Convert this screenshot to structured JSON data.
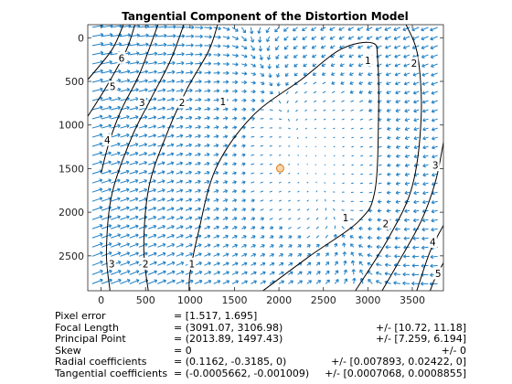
{
  "chart_data": {
    "type": "quiver-contour",
    "title": "Tangential Component of the Distortion Model",
    "xlim": [
      -150,
      3850
    ],
    "ylim": [
      2900,
      -150
    ],
    "y_reversed": true,
    "x_ticks": [
      "0",
      "500",
      "1000",
      "1500",
      "2000",
      "2500",
      "3000",
      "3500"
    ],
    "x_tick_values": [
      0,
      500,
      1000,
      1500,
      2000,
      2500,
      3000,
      3500
    ],
    "y_ticks": [
      "0",
      "500",
      "1000",
      "1500",
      "2000",
      "2500"
    ],
    "y_tick_values": [
      0,
      500,
      1000,
      1500,
      2000,
      2500
    ],
    "principal_point": {
      "x": 2013.89,
      "y": 1497.43,
      "color": "#f08a1e"
    },
    "arrow_color": "#1f7fc4",
    "contour_color": "#000000",
    "contour_labels": [
      {
        "text": "6",
        "x": 230,
        "y": 230
      },
      {
        "text": "5",
        "x": 130,
        "y": 560
      },
      {
        "text": "4",
        "x": 70,
        "y": 1170
      },
      {
        "text": "3",
        "x": 460,
        "y": 740
      },
      {
        "text": "2",
        "x": 910,
        "y": 740
      },
      {
        "text": "1",
        "x": 1370,
        "y": 730
      },
      {
        "text": "1",
        "x": 3000,
        "y": 260
      },
      {
        "text": "2",
        "x": 3520,
        "y": 290
      },
      {
        "text": "3",
        "x": 3760,
        "y": 1460
      },
      {
        "text": "1",
        "x": 2750,
        "y": 2060
      },
      {
        "text": "2",
        "x": 3200,
        "y": 2130
      },
      {
        "text": "4",
        "x": 3730,
        "y": 2340
      },
      {
        "text": "5",
        "x": 3790,
        "y": 2700
      },
      {
        "text": "3",
        "x": 120,
        "y": 2590
      },
      {
        "text": "2",
        "x": 500,
        "y": 2590
      },
      {
        "text": "1",
        "x": 1020,
        "y": 2590
      }
    ]
  },
  "params": [
    {
      "label": "Pixel error",
      "value": "= [1.517, 1.695]",
      "error": ""
    },
    {
      "label": "Focal Length",
      "value": "= (3091.07, 3106.98)",
      "error": "+/- [10.72, 11.18]"
    },
    {
      "label": "Principal Point",
      "value": "= (2013.89, 1497.43)",
      "error": "+/- [7.259, 6.194]"
    },
    {
      "label": "Skew",
      "value": "= 0",
      "error": "+/- 0"
    },
    {
      "label": "Radial coefficients",
      "value": "= (0.1162, -0.3185, 0)",
      "error": "+/- [0.007893, 0.02422, 0]"
    },
    {
      "label": "Tangential coefficients",
      "value": "= (-0.0005662, -0.001009)",
      "error": "+/- [0.0007068, 0.0008855]"
    }
  ]
}
